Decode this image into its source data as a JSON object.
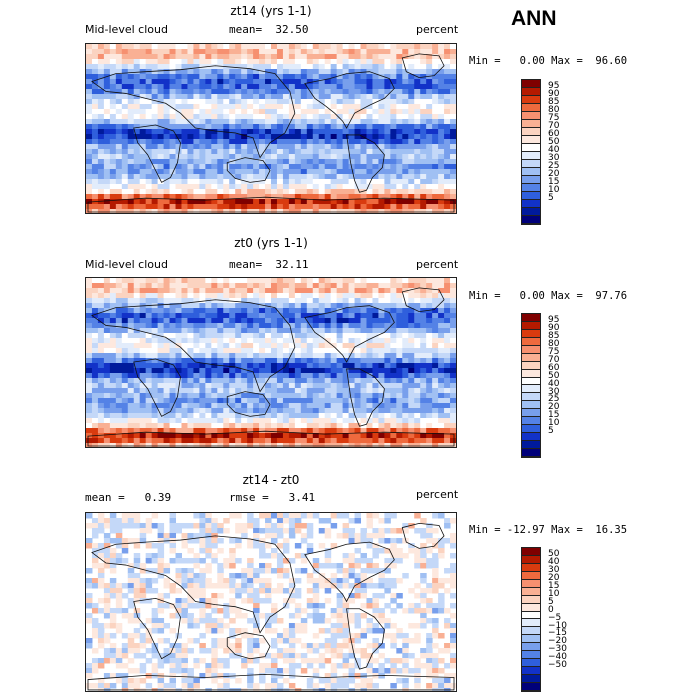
{
  "main_title": "ANN",
  "panels": [
    {
      "title": "zt14 (yrs 1-1)",
      "left_label": "Mid-level cloud",
      "mid_label": "mean=  32.50",
      "right_label": "percent",
      "minmax": "Min =   0.00 Max =  96.60",
      "map_style": "cloud",
      "colorbar": {
        "colors": [
          "#7f0000",
          "#b41a00",
          "#d93b0f",
          "#ee6a3e",
          "#f69070",
          "#f9b094",
          "#fbd3c0",
          "#fde8de",
          "#ffffff",
          "#e2ecfb",
          "#c4d8f8",
          "#a0c0f3",
          "#789fec",
          "#5482e6",
          "#2f5fdc",
          "#1232c8",
          "#001a9c",
          "#00007a"
        ],
        "labels": [
          "95",
          "90",
          "85",
          "80",
          "75",
          "70",
          "60",
          "50",
          "40",
          "30",
          "25",
          "20",
          "15",
          "10",
          "5"
        ]
      }
    },
    {
      "title": "zt0 (yrs 1-1)",
      "left_label": "Mid-level cloud",
      "mid_label": "mean=  32.11",
      "right_label": "percent",
      "minmax": "Min =   0.00 Max =  97.76",
      "map_style": "cloud",
      "colorbar": {
        "colors": [
          "#7f0000",
          "#b41a00",
          "#d93b0f",
          "#ee6a3e",
          "#f69070",
          "#f9b094",
          "#fbd3c0",
          "#fde8de",
          "#ffffff",
          "#e2ecfb",
          "#c4d8f8",
          "#a0c0f3",
          "#789fec",
          "#5482e6",
          "#2f5fdc",
          "#1232c8",
          "#001a9c",
          "#00007a"
        ],
        "labels": [
          "95",
          "90",
          "85",
          "80",
          "75",
          "70",
          "60",
          "50",
          "40",
          "30",
          "25",
          "20",
          "15",
          "10",
          "5"
        ]
      }
    },
    {
      "title": "zt14 - zt0",
      "left_label": "mean =   0.39",
      "mid_label": "rmse =   3.41",
      "right_label": "percent",
      "minmax": "Min = -12.97 Max =  16.35",
      "map_style": "diff",
      "colorbar": {
        "colors": [
          "#7f0000",
          "#b41a00",
          "#d93b0f",
          "#ee6a3e",
          "#f69070",
          "#f9b094",
          "#fbd3c0",
          "#fde8de",
          "#ffffff",
          "#e2ecfb",
          "#c4d8f8",
          "#a0c0f3",
          "#789fec",
          "#5482e6",
          "#2f5fdc",
          "#1232c8",
          "#001a9c",
          "#00007a"
        ],
        "labels": [
          "50",
          "40",
          "30",
          "20",
          "15",
          "10",
          "5",
          "0",
          "−5",
          "−10",
          "−15",
          "−20",
          "−30",
          "−40",
          "−50"
        ]
      }
    }
  ]
}
